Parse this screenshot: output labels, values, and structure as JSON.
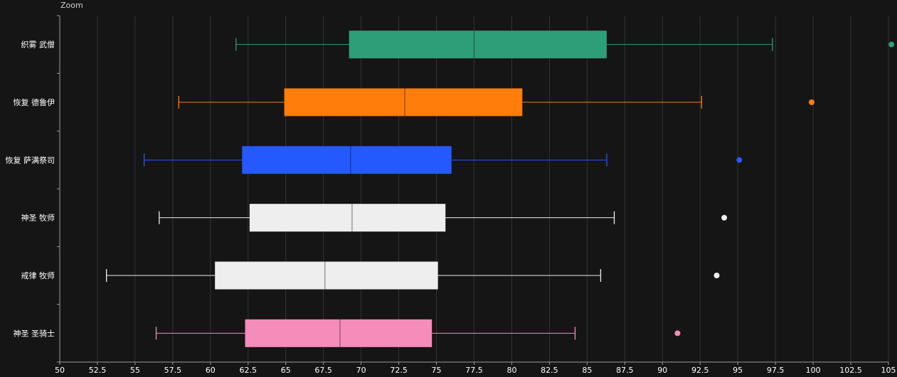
{
  "toolbar": {
    "zoom_label": "Zoom"
  },
  "chart_data": {
    "type": "boxplot",
    "orientation": "horizontal",
    "xlim": [
      50,
      105
    ],
    "x_tick_step": 2.5,
    "x_ticks": [
      "50",
      "52.5",
      "55",
      "57.5",
      "60",
      "62.5",
      "65",
      "67.5",
      "70",
      "72.5",
      "75",
      "77.5",
      "80",
      "82.5",
      "85",
      "87.5",
      "90",
      "92.5",
      "95",
      "97.5",
      "100",
      "102.5",
      "105"
    ],
    "grid": true,
    "categories": [
      "织雾 武僧",
      "恢复 德鲁伊",
      "恢复 萨满祭司",
      "神圣 牧师",
      "戒律 牧师",
      "神圣 圣骑士"
    ],
    "series": [
      {
        "name": "织雾 武僧",
        "min": 61.7,
        "q1": 69.2,
        "median": 77.5,
        "q3": 86.3,
        "max": 97.3,
        "outliers": [
          105.2
        ],
        "color": "#2e9e79"
      },
      {
        "name": "恢复 德鲁伊",
        "min": 57.9,
        "q1": 64.9,
        "median": 72.9,
        "q3": 80.7,
        "max": 92.6,
        "outliers": [
          99.9
        ],
        "color": "#ff7d0a"
      },
      {
        "name": "恢复 萨满祭司",
        "min": 55.6,
        "q1": 62.1,
        "median": 69.3,
        "q3": 76.0,
        "max": 86.3,
        "outliers": [
          95.1
        ],
        "color": "#2459ff"
      },
      {
        "name": "神圣 牧师",
        "min": 56.6,
        "q1": 62.6,
        "median": 69.4,
        "q3": 75.6,
        "max": 86.8,
        "outliers": [
          94.1
        ],
        "color": "#eeeeee"
      },
      {
        "name": "戒律 牧师",
        "min": 53.1,
        "q1": 60.3,
        "median": 67.6,
        "q3": 75.1,
        "max": 85.9,
        "outliers": [
          93.6
        ],
        "color": "#eeeeee"
      },
      {
        "name": "神圣 圣骑士",
        "min": 56.4,
        "q1": 62.3,
        "median": 68.6,
        "q3": 74.7,
        "max": 84.2,
        "outliers": [
          91.0
        ],
        "color": "#f58cba"
      }
    ]
  }
}
